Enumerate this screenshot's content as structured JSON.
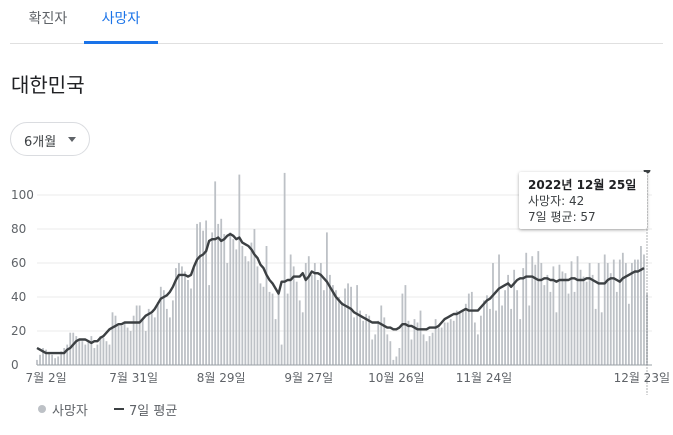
{
  "tabs": [
    {
      "label": "확진자",
      "active": false
    },
    {
      "label": "사망자",
      "active": true
    }
  ],
  "region_title": "대한민국",
  "period_selector": {
    "label": "6개월"
  },
  "tooltip": {
    "date": "2022년 12월 25일",
    "deaths_line": "사망자: 42",
    "avg_line": "7일 평균: 57"
  },
  "legend": {
    "deaths": "사망자",
    "avg": "7일 평균"
  },
  "colors": {
    "accent": "#1a73e8",
    "bars": "#bdc1c6",
    "avg_line": "#3c4043"
  },
  "chart_data": {
    "type": "bar",
    "yticks": [
      0,
      20,
      40,
      60,
      80,
      100
    ],
    "ylim": [
      0,
      115
    ],
    "x_tick_labels": [
      "7월 2일",
      "7월 31일",
      "8월 29일",
      "9월 27일",
      "10월 26일",
      "11월 24일",
      "12월 23일"
    ],
    "series": [
      {
        "name": "사망자",
        "values": [
          3,
          6,
          10,
          9,
          7,
          6,
          4,
          5,
          8,
          10,
          12,
          19,
          19,
          17,
          15,
          14,
          12,
          14,
          17,
          10,
          12,
          17,
          16,
          14,
          12,
          31,
          29,
          23,
          23,
          25,
          22,
          20,
          29,
          35,
          35,
          27,
          20,
          33,
          30,
          28,
          37,
          46,
          44,
          33,
          28,
          38,
          57,
          60,
          58,
          55,
          50,
          45,
          57,
          83,
          84,
          79,
          85,
          47,
          78,
          108,
          83,
          86,
          77,
          60,
          78,
          74,
          68,
          112,
          70,
          64,
          61,
          72,
          80,
          58,
          48,
          46,
          70,
          43,
          42,
          27,
          43,
          12,
          113,
          42,
          65,
          58,
          49,
          38,
          31,
          60,
          64,
          53,
          60,
          50,
          60,
          44,
          78,
          53,
          47,
          44,
          40,
          37,
          45,
          48,
          46,
          28,
          47,
          32,
          26,
          30,
          29,
          15,
          18,
          26,
          35,
          28,
          18,
          14,
          3,
          5,
          10,
          42,
          47,
          26,
          15,
          27,
          25,
          32,
          18,
          14,
          17,
          19,
          27,
          22,
          22,
          25,
          25,
          27,
          26,
          32,
          31,
          32,
          36,
          42,
          43,
          25,
          18,
          29,
          38,
          41,
          33,
          60,
          32,
          65,
          35,
          44,
          53,
          33,
          56,
          44,
          27,
          57,
          66,
          35,
          64,
          59,
          67,
          60,
          47,
          53,
          43,
          58,
          31,
          59,
          55,
          54,
          42,
          61,
          43,
          64,
          56,
          52,
          49,
          60,
          53,
          33,
          60,
          31,
          65,
          60,
          54,
          62,
          43,
          62,
          66,
          60,
          36,
          60,
          62,
          62,
          70,
          65,
          42
        ],
        "x_range": [
          "2022-06-29",
          "2022-12-25"
        ]
      },
      {
        "name": "7일 평균",
        "values": [
          10,
          9,
          8,
          7,
          7,
          7,
          7,
          7,
          7,
          7,
          9,
          10,
          12,
          14,
          15,
          15,
          15,
          14,
          13,
          14,
          14,
          16,
          17,
          19,
          21,
          22,
          23,
          24,
          24,
          25,
          25,
          25,
          25,
          25,
          25,
          27,
          29,
          30,
          31,
          33,
          36,
          39,
          40,
          41,
          43,
          46,
          50,
          53,
          53,
          53,
          52,
          53,
          58,
          62,
          64,
          65,
          67,
          73,
          74,
          74,
          75,
          73,
          74,
          76,
          77,
          76,
          74,
          75,
          72,
          71,
          70,
          68,
          65,
          63,
          59,
          57,
          53,
          50,
          48,
          45,
          42,
          49,
          49,
          50,
          50,
          52,
          52,
          52,
          54,
          50,
          52,
          55,
          54,
          54,
          53,
          51,
          49,
          46,
          43,
          40,
          38,
          36,
          35,
          34,
          33,
          31,
          30,
          29,
          28,
          27,
          26,
          25,
          25,
          25,
          24,
          23,
          22,
          22,
          21,
          21,
          22,
          24,
          24,
          23,
          23,
          22,
          21,
          21,
          21,
          21,
          22,
          22,
          22,
          23,
          25,
          27,
          28,
          29,
          30,
          30,
          31,
          32,
          33,
          32,
          32,
          32,
          32,
          34,
          36,
          38,
          39,
          41,
          43,
          45,
          46,
          47,
          48,
          46,
          48,
          50,
          51,
          51,
          52,
          52,
          52,
          51,
          50,
          50,
          51,
          51,
          50,
          50,
          49,
          50,
          50,
          50,
          50,
          51,
          51,
          50,
          50,
          50,
          51,
          51,
          50,
          49,
          48,
          48,
          48,
          50,
          51,
          51,
          50,
          49,
          51,
          52,
          53,
          54,
          55,
          55,
          56,
          57
        ],
        "x_range": [
          "2022-06-29",
          "2022-12-25"
        ]
      }
    ],
    "highlight": {
      "date": "2022-12-25",
      "deaths": 42,
      "avg": 57
    },
    "grid": "horizontal",
    "legend_position": "bottom-left"
  }
}
